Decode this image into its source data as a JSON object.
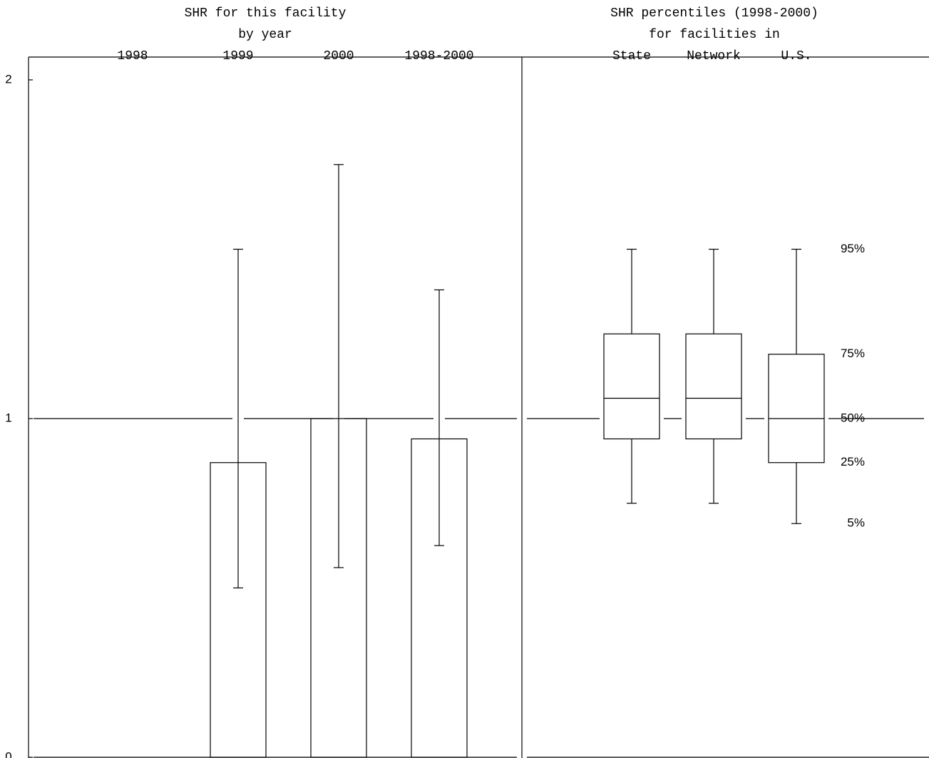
{
  "chart_data": [
    {
      "type": "bar",
      "title": "SHR for this facility",
      "subtitle": "by year",
      "categories": [
        "1998",
        "1999",
        "2000",
        "1998-2000"
      ],
      "values": [
        null,
        0.87,
        1.0,
        0.94
      ],
      "lower": [
        null,
        0.5,
        0.56,
        0.625
      ],
      "upper": [
        null,
        1.5,
        1.75,
        1.38
      ],
      "ylim": [
        0,
        2
      ],
      "yticks": [
        0,
        1,
        2
      ],
      "reference_line": 1,
      "color": "#ffffff"
    },
    {
      "type": "box",
      "title": "SHR percentiles (1998-2000)",
      "subtitle": "for facilities in",
      "categories": [
        "State",
        "Network",
        "U.S."
      ],
      "p95": [
        1.5,
        1.5,
        1.5
      ],
      "p75": [
        1.25,
        1.25,
        1.19
      ],
      "median": [
        1.06,
        1.06,
        1.0
      ],
      "p25": [
        0.94,
        0.94,
        0.87
      ],
      "p05": [
        0.75,
        0.75,
        0.69
      ],
      "percentile_labels": [
        "95%",
        "75%",
        "50%",
        "25%",
        "5%"
      ],
      "ylim": [
        0,
        2
      ],
      "reference_line": 1,
      "color": "#ffffff"
    }
  ]
}
